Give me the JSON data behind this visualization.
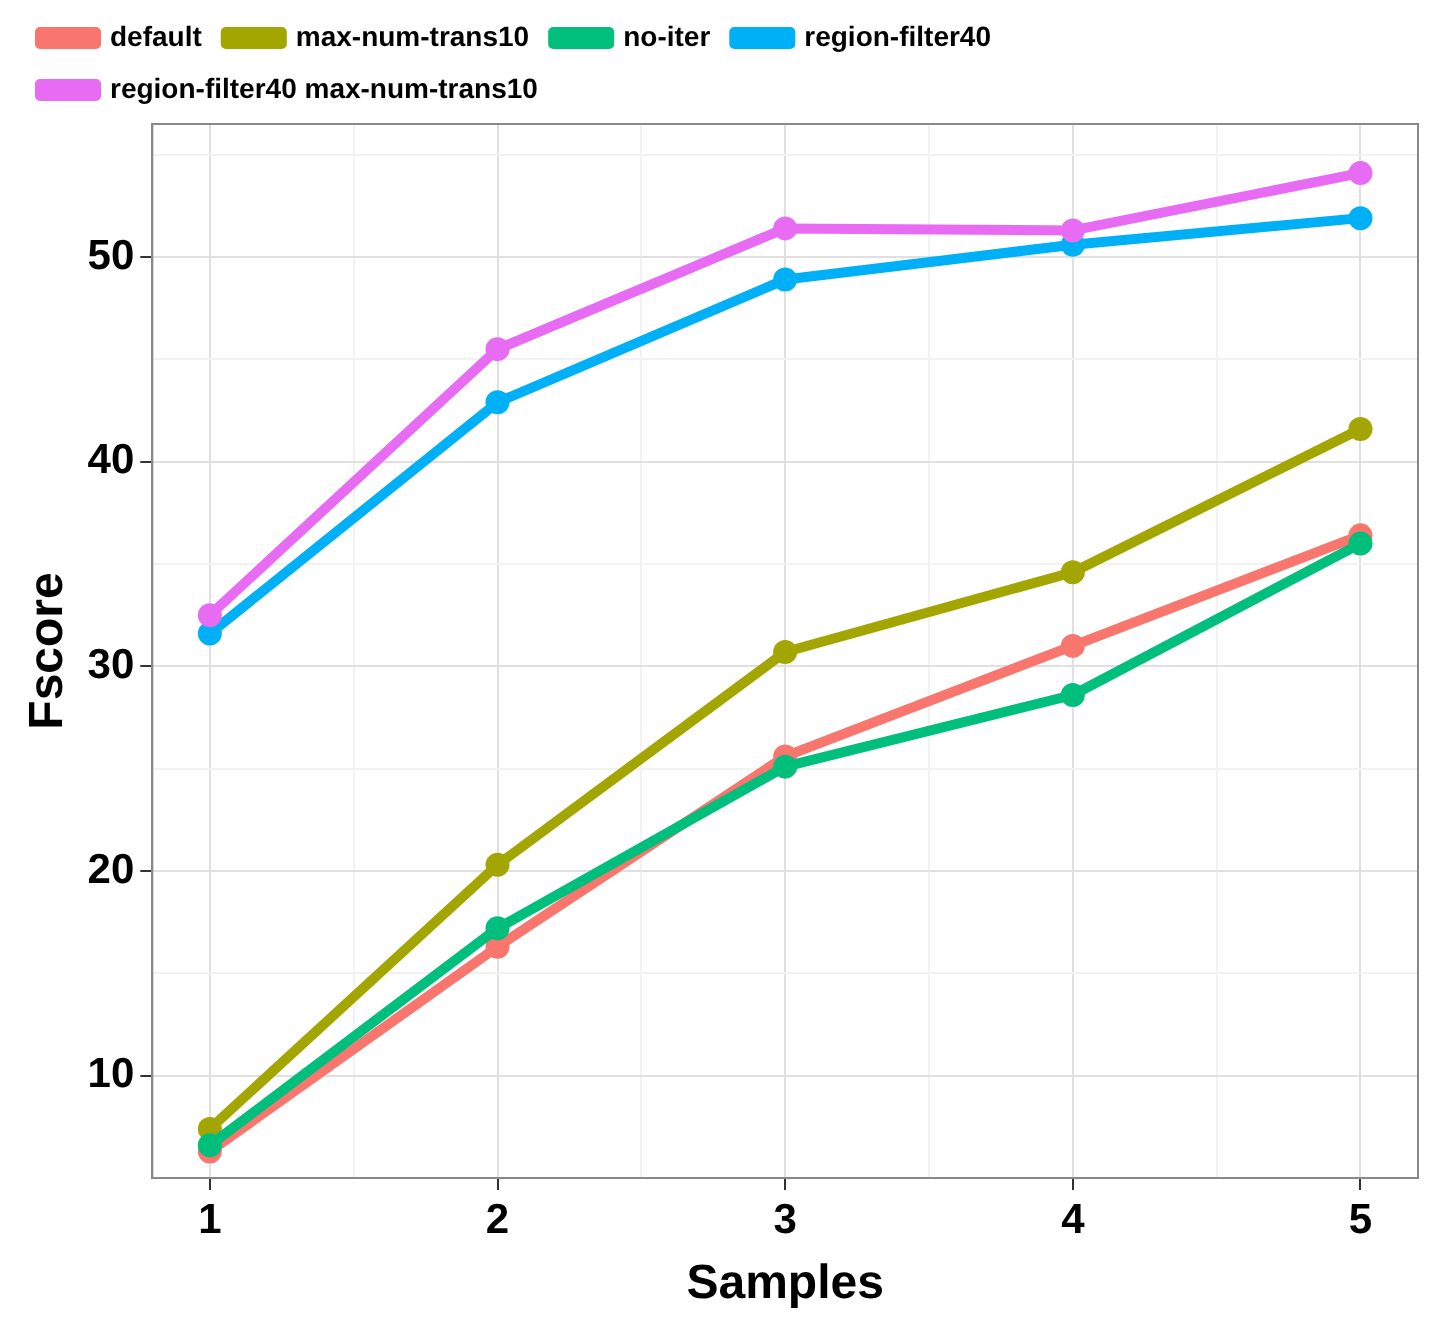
{
  "chart_data": {
    "type": "line",
    "xlabel": "Samples",
    "ylabel": "Fscore",
    "x": [
      1,
      2,
      3,
      4,
      5
    ],
    "xlim": [
      0.8,
      5.2
    ],
    "xticks": [
      1,
      {
        "value": 1.5,
        "label": null
      },
      2,
      {
        "value": 2.5,
        "label": null
      },
      3,
      {
        "value": 3.5,
        "label": null
      },
      4,
      {
        "value": 4.5,
        "label": null
      },
      5
    ],
    "ylim": [
      5,
      56.5
    ],
    "yticks": [
      10,
      {
        "value": 15,
        "label": null
      },
      20,
      {
        "value": 25,
        "label": null
      },
      30,
      {
        "value": 35,
        "label": null
      },
      40,
      {
        "value": 45,
        "label": null
      },
      50,
      {
        "value": 55,
        "label": null
      }
    ],
    "grid": true,
    "legend": "top",
    "marker": "circle",
    "line_style": "solid",
    "series": [
      {
        "name": "default",
        "color": "#f8766d",
        "values": [
          6.3,
          16.3,
          25.6,
          31.0,
          36.4
        ]
      },
      {
        "name": "max-num-trans10",
        "color": "#a3a500",
        "values": [
          7.4,
          20.3,
          30.7,
          34.6,
          41.6
        ]
      },
      {
        "name": "no-iter",
        "color": "#00bf7d",
        "values": [
          6.6,
          17.2,
          25.1,
          28.6,
          36.0
        ]
      },
      {
        "name": "region-filter40",
        "color": "#00b0f6",
        "values": [
          31.6,
          42.9,
          48.9,
          50.6,
          51.9
        ]
      },
      {
        "name": "region-filter40 max-num-trans10",
        "color": "#e76bf3",
        "values": [
          32.5,
          45.5,
          51.4,
          51.3,
          54.1
        ]
      }
    ]
  }
}
